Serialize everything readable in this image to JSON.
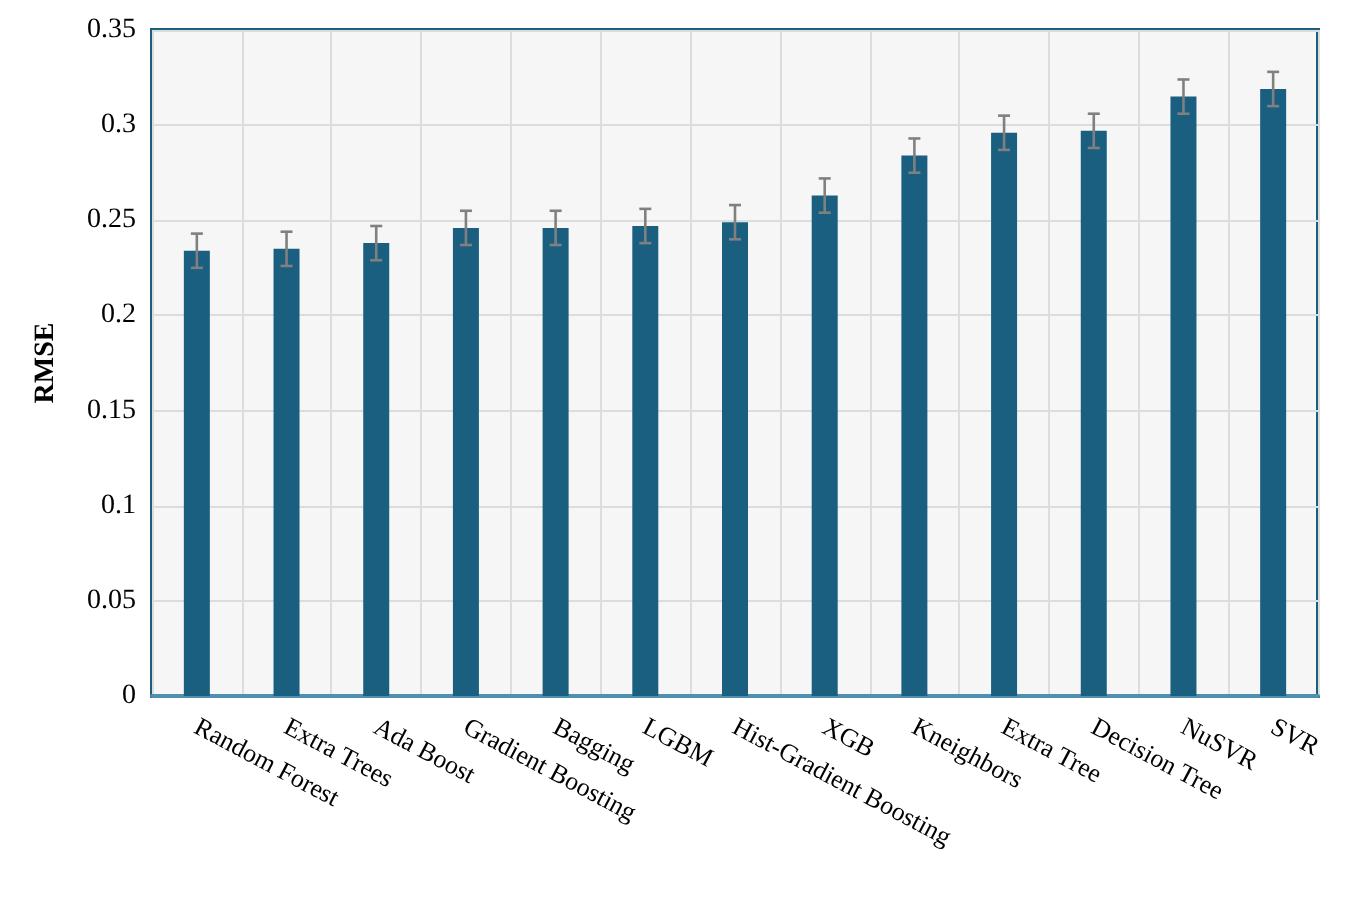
{
  "chart_data": {
    "type": "bar",
    "ylabel": "RMSE",
    "categories": [
      "Random Forest",
      "Extra Trees",
      "Ada Boost",
      "Gradient Boosting",
      "Bagging",
      "LGBM",
      "Hist-Gradient Boosting",
      "XGB",
      "Kneighbors",
      "Extra Tree",
      "Decision Tree",
      "NuSVR",
      "SVR"
    ],
    "values": [
      0.234,
      0.235,
      0.238,
      0.246,
      0.246,
      0.247,
      0.249,
      0.263,
      0.284,
      0.296,
      0.297,
      0.315,
      0.319
    ],
    "errors": [
      0.009,
      0.009,
      0.009,
      0.009,
      0.009,
      0.009,
      0.009,
      0.009,
      0.009,
      0.009,
      0.009,
      0.009,
      0.009
    ],
    "color": "#1a5e80",
    "ylim": [
      0,
      0.35
    ],
    "yticks": [
      0,
      0.05,
      0.1,
      0.15,
      0.2,
      0.25,
      0.3,
      0.35
    ],
    "grid": true
  }
}
